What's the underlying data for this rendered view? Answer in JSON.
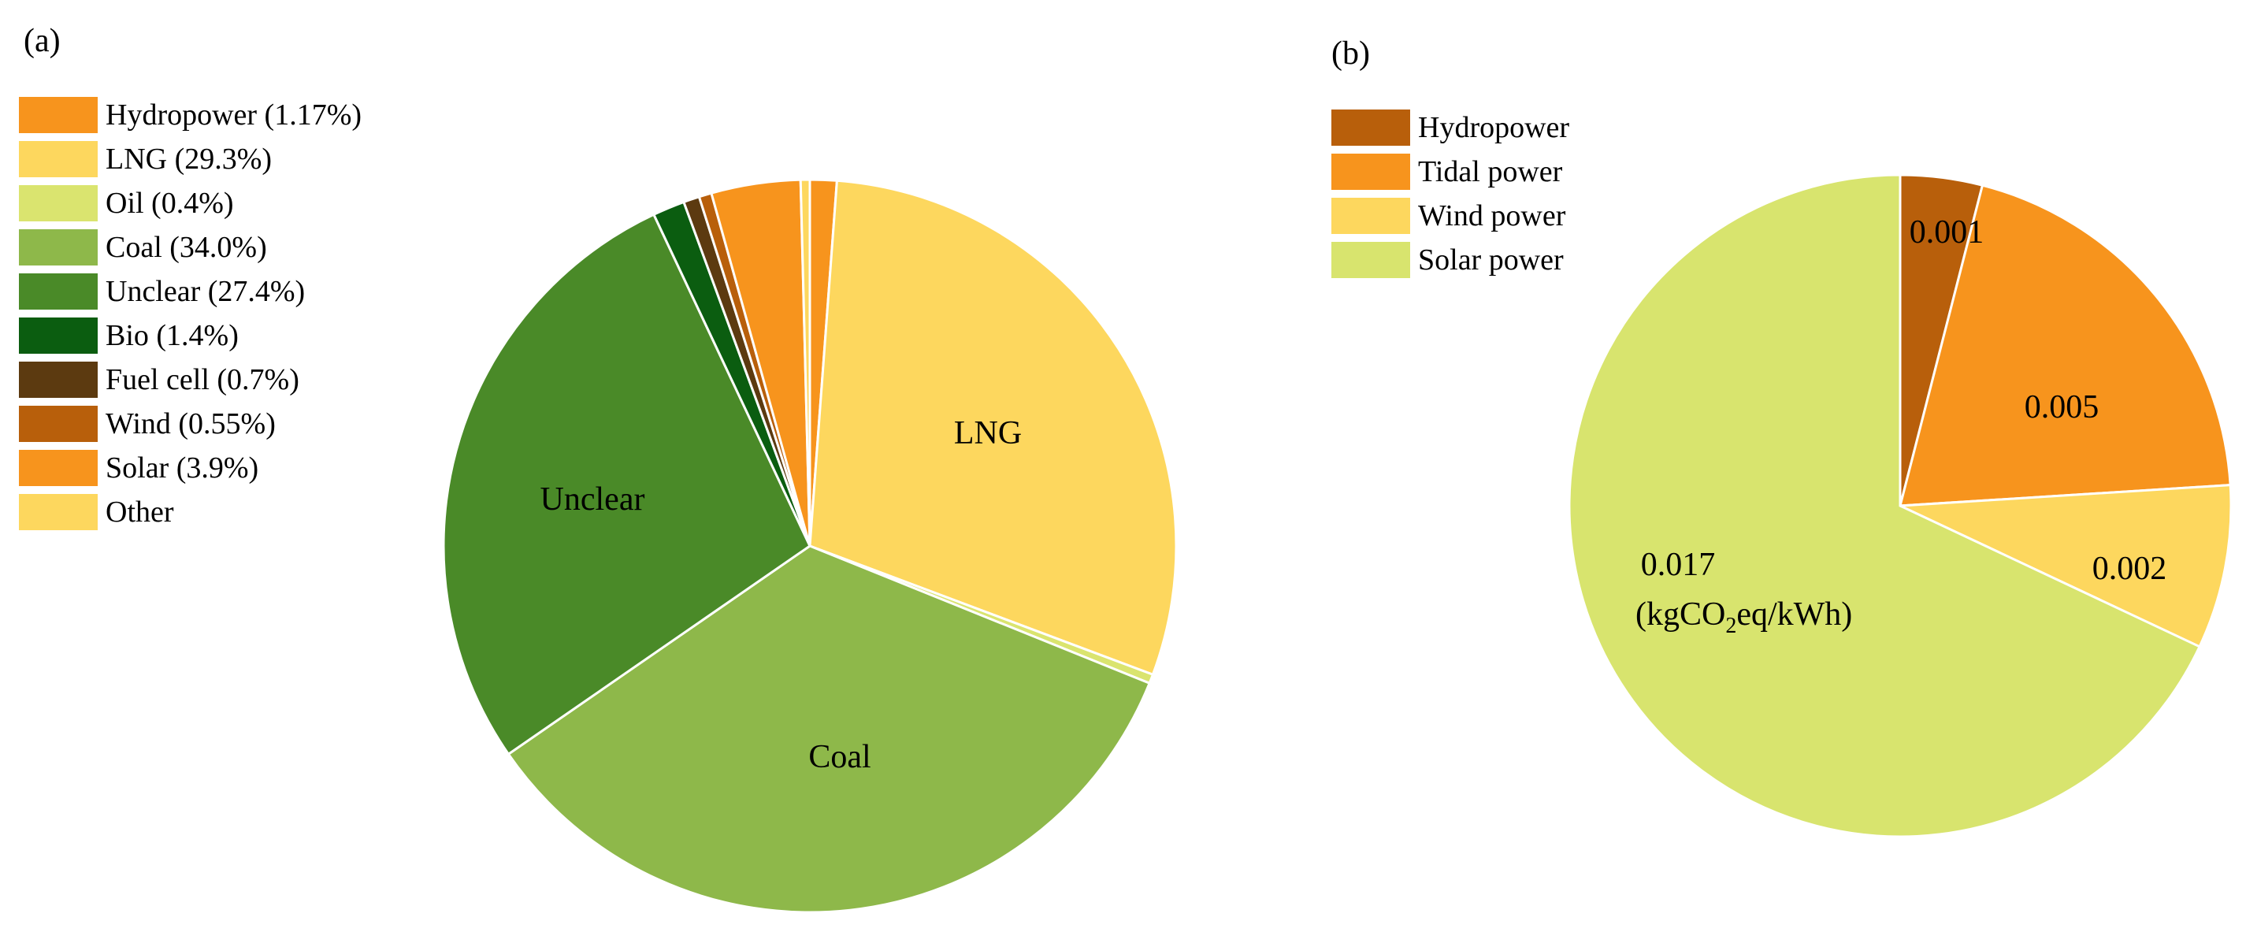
{
  "chart_data": [
    {
      "type": "pie",
      "panel_label": "(a)",
      "title": "",
      "slices": [
        {
          "name": "Hydropower",
          "legend": "Hydropower (1.17%)",
          "value": 1.17,
          "color": "#F7941D",
          "label": ""
        },
        {
          "name": "LNG",
          "legend": "LNG (29.3%)",
          "value": 29.3,
          "color": "#FDD75E",
          "label": "LNG"
        },
        {
          "name": "Oil",
          "legend": "Oil (0.4%)",
          "value": 0.4,
          "color": "#DAE46F",
          "label": ""
        },
        {
          "name": "Coal",
          "legend": "Coal (34.0%)",
          "value": 34.0,
          "color": "#8EB84A",
          "label": "Coal"
        },
        {
          "name": "Unclear",
          "legend": "Unclear (27.4%)",
          "value": 27.4,
          "color": "#4A8A28",
          "label": "Unclear"
        },
        {
          "name": "Bio",
          "legend": "Bio (1.4%)",
          "value": 1.4,
          "color": "#0B5D10",
          "label": ""
        },
        {
          "name": "Fuel cell",
          "legend": "Fuel cell (0.7%)",
          "value": 0.7,
          "color": "#5C3A10",
          "label": ""
        },
        {
          "name": "Wind",
          "legend": "Wind (0.55%)",
          "value": 0.55,
          "color": "#B85F0B",
          "label": ""
        },
        {
          "name": "Solar",
          "legend": "Solar (3.9%)",
          "value": 3.9,
          "color": "#F7941D",
          "label": ""
        },
        {
          "name": "Other",
          "legend": "Other",
          "value": 0.4,
          "color": "#FDD75E",
          "label": ""
        }
      ]
    },
    {
      "type": "pie",
      "panel_label": "(b)",
      "title": "",
      "unit": "kgCO2eq/kWh",
      "slices": [
        {
          "name": "Hydropower",
          "legend": "Hydropower",
          "value": 0.001,
          "color": "#B85F0B",
          "label": "0.001"
        },
        {
          "name": "Tidal power",
          "legend": "Tidal power",
          "value": 0.005,
          "color": "#F7941D",
          "label": "0.005"
        },
        {
          "name": "Wind power",
          "legend": "Wind power",
          "value": 0.002,
          "color": "#FDD75E",
          "label": "0.002"
        },
        {
          "name": "Solar power",
          "legend": "Solar power",
          "value": 0.017,
          "color": "#D8E46E",
          "label": "0.017"
        }
      ],
      "unit_label": {
        "open": "(kgCO",
        "sub": "2",
        "close": "eq/kWh)"
      }
    }
  ]
}
